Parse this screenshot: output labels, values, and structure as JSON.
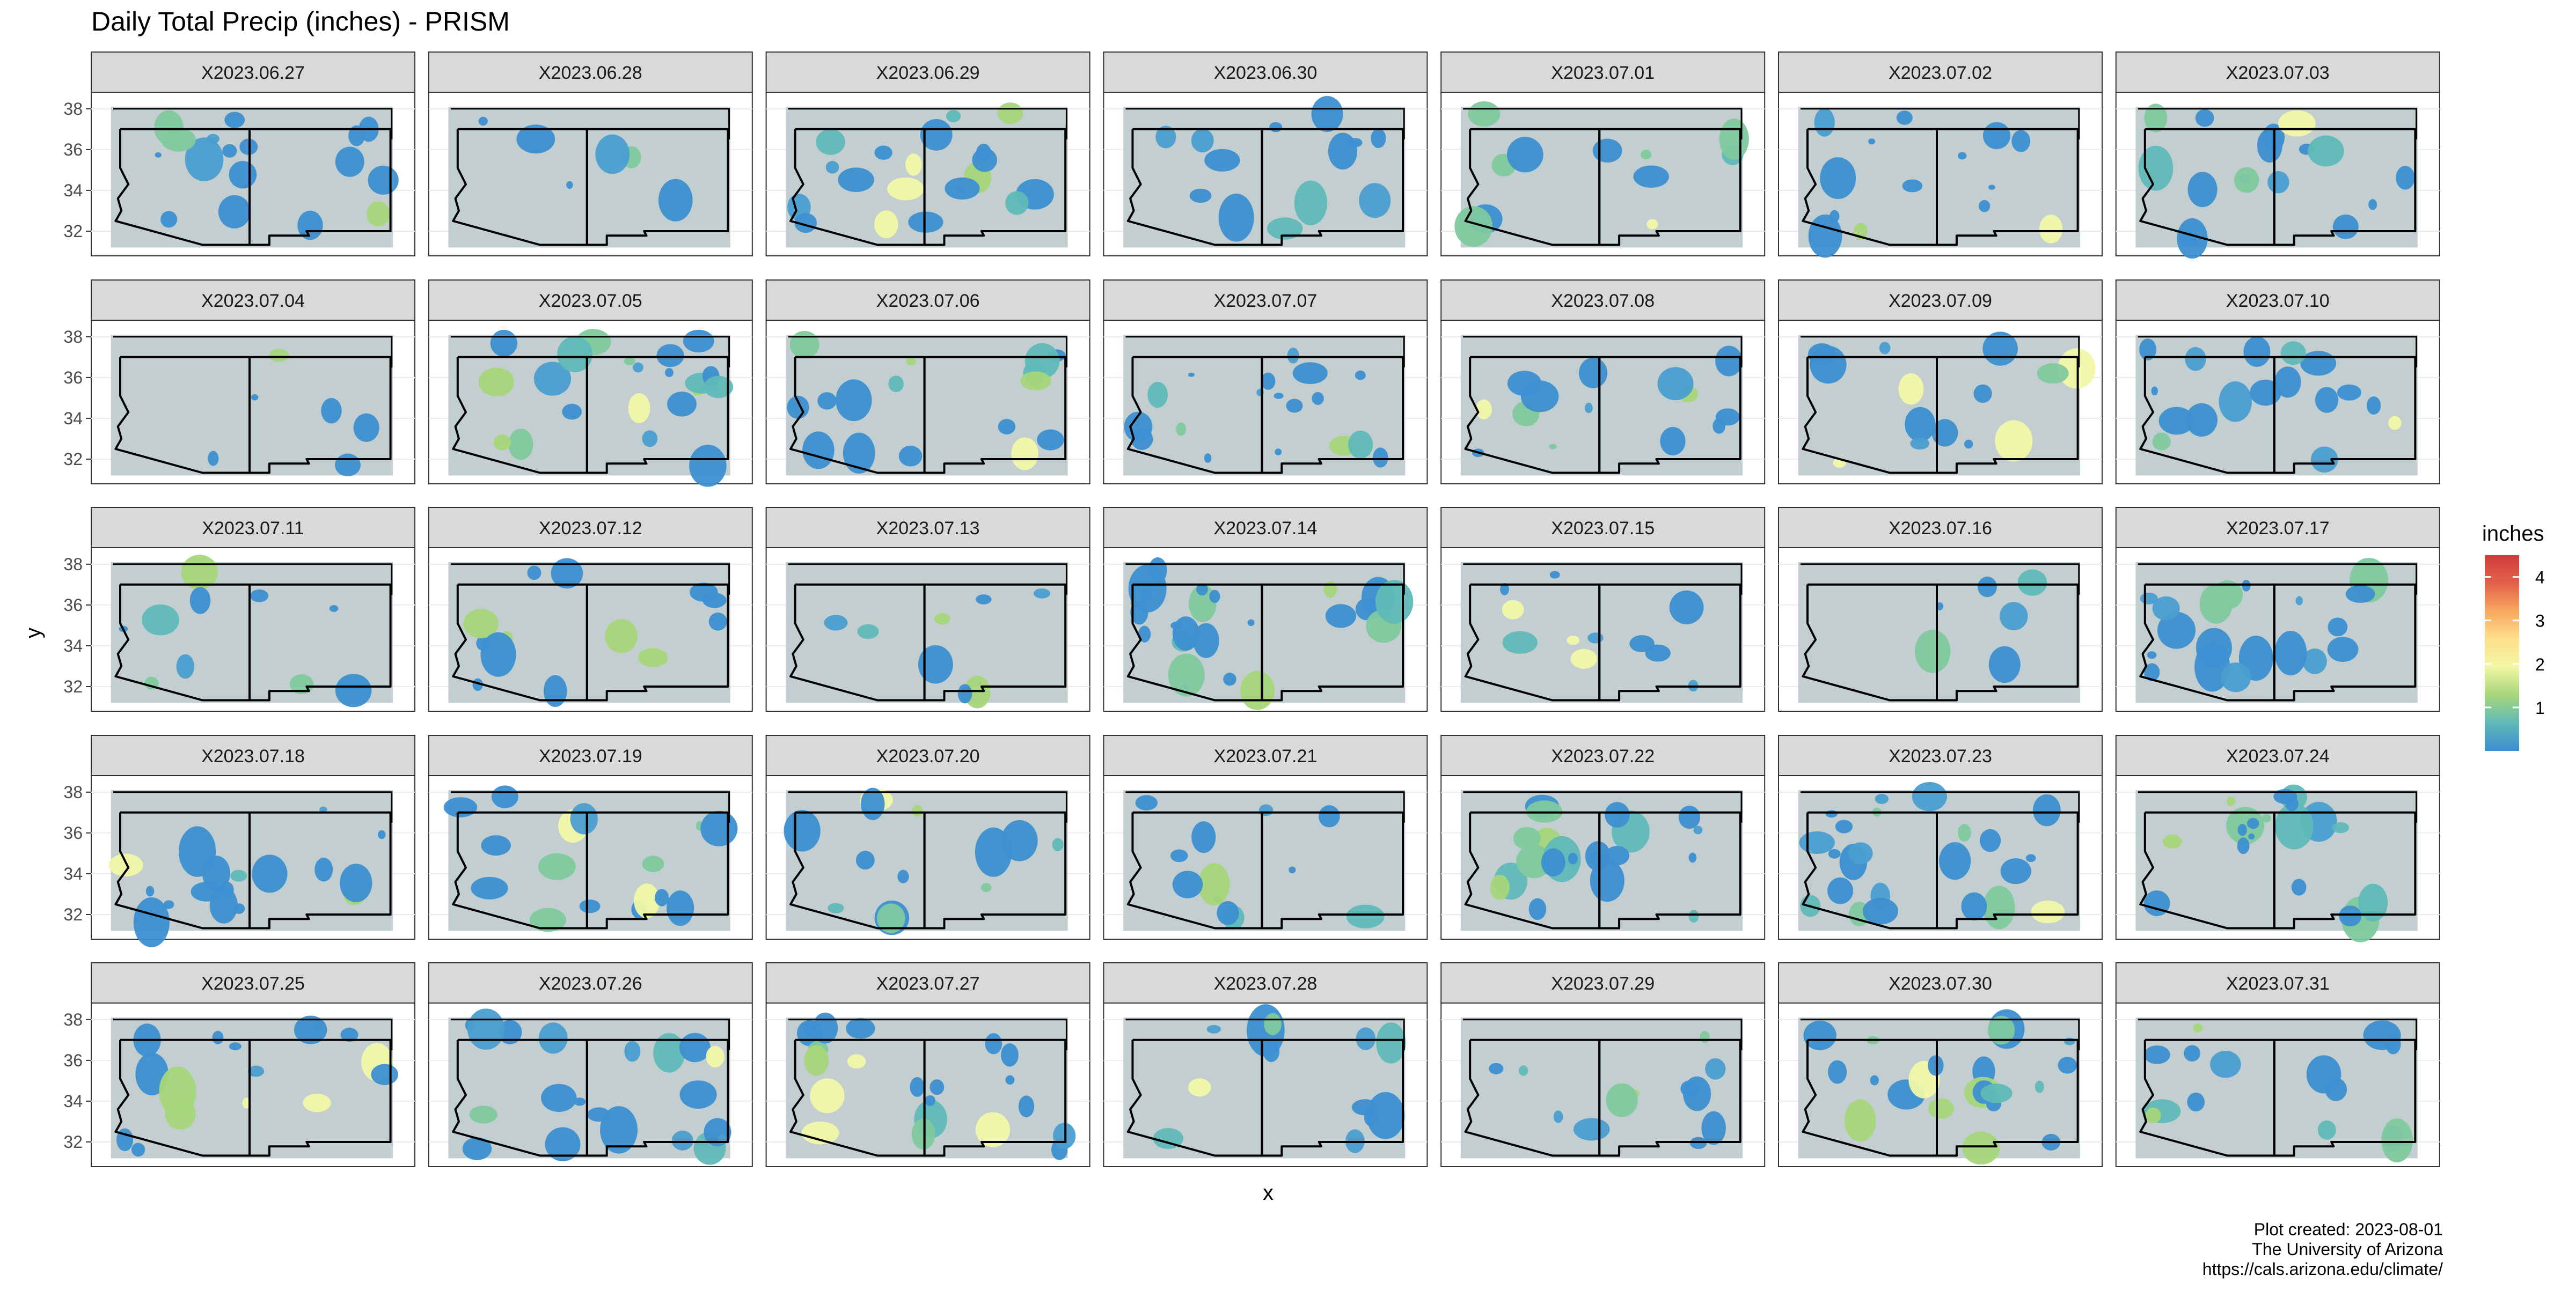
{
  "chart_data": {
    "type": "heatmap",
    "title": "Daily Total Precip (inches) - PRISM",
    "xlabel": "x",
    "ylabel": "y",
    "y_ticks": [
      32,
      34,
      36,
      38
    ],
    "ylim": [
      31,
      38.6
    ],
    "xlim": [
      -115.2,
      -102.6
    ],
    "facet_labels": [
      "X2023.06.27",
      "X2023.06.28",
      "X2023.06.29",
      "X2023.06.30",
      "X2023.07.01",
      "X2023.07.02",
      "X2023.07.03",
      "X2023.07.04",
      "X2023.07.05",
      "X2023.07.06",
      "X2023.07.07",
      "X2023.07.08",
      "X2023.07.09",
      "X2023.07.10",
      "X2023.07.11",
      "X2023.07.12",
      "X2023.07.13",
      "X2023.07.14",
      "X2023.07.15",
      "X2023.07.16",
      "X2023.07.17",
      "X2023.07.18",
      "X2023.07.19",
      "X2023.07.20",
      "X2023.07.21",
      "X2023.07.22",
      "X2023.07.23",
      "X2023.07.24",
      "X2023.07.25",
      "X2023.07.26",
      "X2023.07.27",
      "X2023.07.28",
      "X2023.07.29",
      "X2023.07.30",
      "X2023.07.31"
    ],
    "legend": {
      "title": "inches",
      "position": "right",
      "ticks": [
        1,
        2,
        3,
        4
      ],
      "range": [
        0,
        4.5
      ],
      "colors": [
        "#3d8fd1",
        "#5fb9b8",
        "#a7d67a",
        "#f1f7a6",
        "#fee08b",
        "#f8a860",
        "#e2614a",
        "#d13c3c"
      ]
    },
    "caption": [
      "Plot created: 2023-08-01",
      "The University of Arizona",
      "https://cals.arizona.edu/climate/"
    ],
    "panel_background": "#c3ced0",
    "strip_background": "#d9d9d9"
  }
}
